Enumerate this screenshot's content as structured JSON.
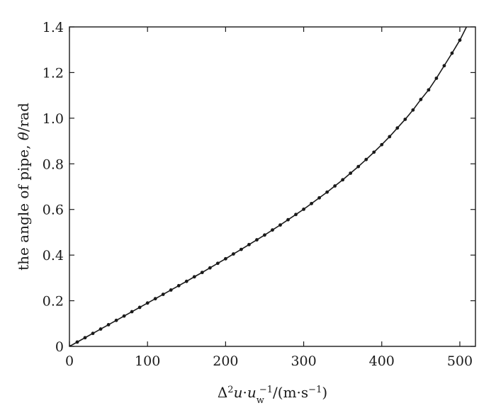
{
  "chart_data": {
    "type": "line",
    "title": "",
    "xlabel": "Δ²u·u_w⁻¹/(m·s⁻¹)",
    "xlabel_parts": {
      "delta": "Δ",
      "sup2": "2",
      "u": "u",
      "dot1": "·",
      "uw": "u",
      "w_sub": "w",
      "minus1_sup": "−1",
      "units_open": "/(m·s",
      "units_sup": "−1",
      "units_close": ")"
    },
    "ylabel": "the angle of pipe, θ/rad",
    "ylabel_parts": {
      "prefix": "the angle of pipe, ",
      "theta": "θ",
      "suffix": "/rad"
    },
    "xlim": [
      0,
      520
    ],
    "ylim": [
      0,
      1.4
    ],
    "x_ticks": [
      0,
      100,
      200,
      300,
      400,
      500
    ],
    "x_tick_labels": [
      "0",
      "100",
      "200",
      "300",
      "400",
      "500"
    ],
    "y_ticks": [
      0,
      0.2,
      0.4,
      0.6,
      0.8,
      1.0,
      1.2,
      1.4
    ],
    "y_tick_labels": [
      "0",
      "0.2",
      "0.4",
      "0.6",
      "0.8",
      "1.0",
      "1.2",
      "1.4"
    ],
    "grid": false,
    "legend": "none",
    "colors": {
      "line": "#1a1a1a",
      "marker": "#1a1a1a",
      "axes": "#1a1a1a"
    },
    "series": [
      {
        "marker": "dot",
        "x": [
          0,
          10,
          20,
          30,
          40,
          50,
          60,
          70,
          80,
          90,
          100,
          110,
          120,
          130,
          140,
          150,
          160,
          170,
          180,
          190,
          200,
          210,
          220,
          230,
          240,
          250,
          260,
          270,
          280,
          290,
          300,
          310,
          320,
          330,
          340,
          350,
          360,
          370,
          380,
          390,
          400,
          410,
          420,
          430,
          440,
          450,
          460,
          470,
          480,
          490,
          500,
          510,
          520
        ],
        "y": [
          0,
          0.019,
          0.038,
          0.057,
          0.076,
          0.095,
          0.114,
          0.133,
          0.152,
          0.171,
          0.19,
          0.209,
          0.228,
          0.247,
          0.266,
          0.285,
          0.305,
          0.324,
          0.344,
          0.364,
          0.384,
          0.405,
          0.425,
          0.446,
          0.467,
          0.488,
          0.51,
          0.532,
          0.555,
          0.578,
          0.601,
          0.626,
          0.651,
          0.676,
          0.703,
          0.73,
          0.759,
          0.788,
          0.819,
          0.851,
          0.884,
          0.919,
          0.957,
          0.995,
          1.036,
          1.082,
          1.124,
          1.175,
          1.23,
          1.285,
          1.342,
          1.41,
          1.48
        ]
      }
    ]
  }
}
